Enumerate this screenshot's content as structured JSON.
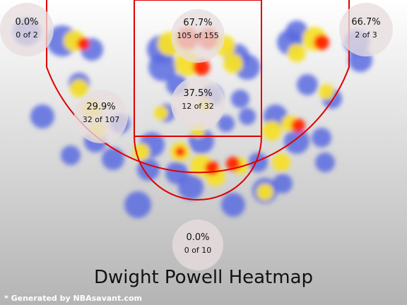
{
  "chart_data": {
    "type": "heatmap",
    "title": "Dwight Powell Heatmap",
    "zones": [
      {
        "id": "left-corner-three",
        "pct": "0.0%",
        "frac": "0 of 2",
        "made": 0,
        "attempts": 2
      },
      {
        "id": "paint",
        "pct": "67.7%",
        "frac": "105 of 155",
        "made": 105,
        "attempts": 155
      },
      {
        "id": "right-corner-three",
        "pct": "66.7%",
        "frac": "2 of 3",
        "made": 2,
        "attempts": 3
      },
      {
        "id": "mid-range-left",
        "pct": "29.9%",
        "frac": "32 of 107",
        "made": 32,
        "attempts": 107
      },
      {
        "id": "mid-range-center",
        "pct": "37.5%",
        "frac": "12 of 32",
        "made": 12,
        "attempts": 32
      },
      {
        "id": "above-break-three",
        "pct": "0.0%",
        "frac": "0 of 10",
        "made": 0,
        "attempts": 10
      }
    ],
    "colors": {
      "court_line": "#e00000",
      "cold": "#5a6be0",
      "warm": "#f5e02a",
      "hot": "#ff2200"
    }
  },
  "footer": "* Generated by NBAsavant.com"
}
